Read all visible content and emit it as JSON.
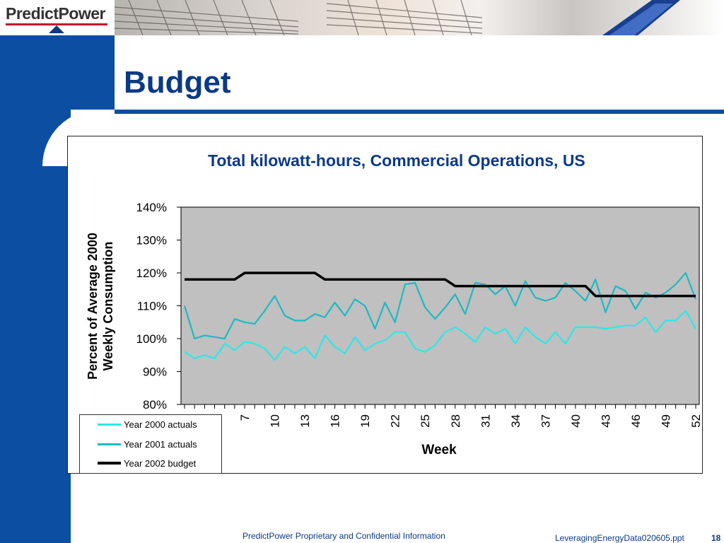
{
  "brand": {
    "logo_text": "PredictPower"
  },
  "slide": {
    "title": "Budget"
  },
  "footer": {
    "center": "PredictPower Proprietary and Confidential Information",
    "file": "LeveragingEnergyData020605.ppt",
    "page": "18"
  },
  "colors": {
    "title_blue": "#0b3a85",
    "band_blue": "#0b4ea2",
    "plot_bg": "#c0c0c0",
    "series_2000": "#2ee6e6",
    "series_2001": "#1fb9c2",
    "series_budget": "#000000"
  },
  "chart_data": {
    "type": "line",
    "title": "Total kilowatt-hours, Commercial Operations, US",
    "xlabel": "Week",
    "ylabel_lines": [
      "Percent of Average 2000",
      "Weekly Consumption"
    ],
    "ylim": [
      0.8,
      1.4
    ],
    "y_ticks": [
      "80%",
      "90%",
      "100%",
      "110%",
      "120%",
      "130%",
      "140%"
    ],
    "x_range": [
      1,
      52
    ],
    "x_tick_labels": [
      "7",
      "10",
      "13",
      "16",
      "19",
      "22",
      "25",
      "28",
      "31",
      "34",
      "37",
      "40",
      "43",
      "46",
      "49",
      "52"
    ],
    "legend": [
      "Year 2000 actuals",
      "Year 2001 actuals",
      "Year 2002 budget"
    ],
    "series": [
      {
        "name": "Year 2000 actuals",
        "values": [
          0.96,
          0.94,
          0.95,
          0.94,
          0.985,
          0.965,
          0.99,
          0.985,
          0.97,
          0.935,
          0.975,
          0.955,
          0.975,
          0.94,
          1.01,
          0.975,
          0.955,
          1.005,
          0.965,
          0.985,
          0.995,
          1.02,
          1.02,
          0.97,
          0.96,
          0.98,
          1.02,
          1.035,
          1.015,
          0.99,
          1.035,
          1.015,
          1.03,
          0.985,
          1.035,
          1.005,
          0.985,
          1.02,
          0.985,
          1.035,
          1.035,
          1.035,
          1.03,
          1.035,
          1.04,
          1.04,
          1.065,
          1.02,
          1.055,
          1.055,
          1.085,
          1.03
        ]
      },
      {
        "name": "Year 2001 actuals",
        "values": [
          1.1,
          1.0,
          1.01,
          1.005,
          1.0,
          1.06,
          1.05,
          1.045,
          1.085,
          1.13,
          1.07,
          1.055,
          1.055,
          1.075,
          1.065,
          1.11,
          1.07,
          1.12,
          1.1,
          1.03,
          1.11,
          1.05,
          1.165,
          1.17,
          1.095,
          1.06,
          1.095,
          1.135,
          1.075,
          1.17,
          1.165,
          1.135,
          1.16,
          1.1,
          1.175,
          1.125,
          1.115,
          1.125,
          1.17,
          1.145,
          1.115,
          1.18,
          1.08,
          1.16,
          1.145,
          1.09,
          1.14,
          1.125,
          1.14,
          1.165,
          1.2,
          1.12
        ]
      },
      {
        "name": "Year 2002 budget",
        "values": [
          1.18,
          1.18,
          1.18,
          1.18,
          1.18,
          1.18,
          1.2,
          1.2,
          1.2,
          1.2,
          1.2,
          1.2,
          1.2,
          1.2,
          1.18,
          1.18,
          1.18,
          1.18,
          1.18,
          1.18,
          1.18,
          1.18,
          1.18,
          1.18,
          1.18,
          1.18,
          1.18,
          1.16,
          1.16,
          1.16,
          1.16,
          1.16,
          1.16,
          1.16,
          1.16,
          1.16,
          1.16,
          1.16,
          1.16,
          1.16,
          1.16,
          1.13,
          1.13,
          1.13,
          1.13,
          1.13,
          1.13,
          1.13,
          1.13,
          1.13,
          1.13,
          1.13
        ]
      }
    ]
  }
}
